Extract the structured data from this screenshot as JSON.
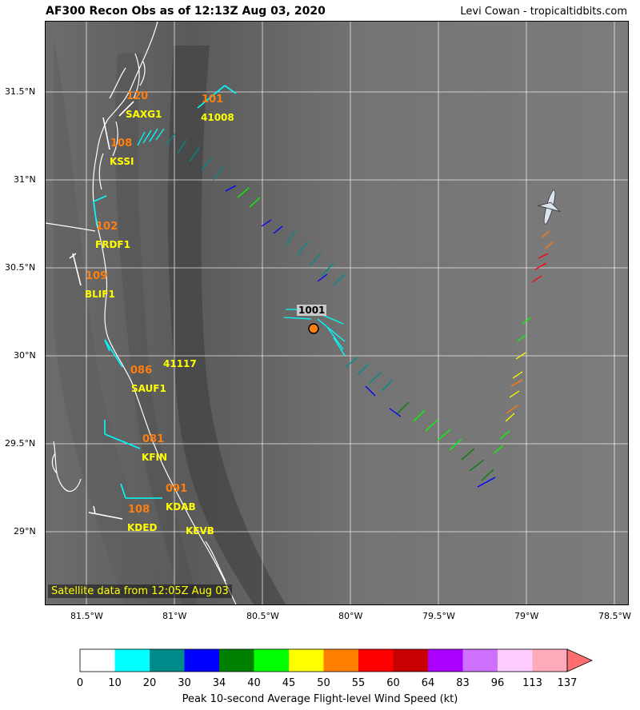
{
  "header": {
    "title": "AF300 Recon Obs as of 12:13Z Aug 03, 2020",
    "credit": "Levi Cowan - tropicaltidbits.com"
  },
  "axes": {
    "lat_labels": [
      "31.5°N",
      "31°N",
      "30.5°N",
      "30°N",
      "29.5°N",
      "29°N"
    ],
    "lon_labels": [
      "81.5°W",
      "81°W",
      "80.5°W",
      "80°W",
      "79.5°W",
      "79°W",
      "78.5°W"
    ]
  },
  "stations": [
    {
      "id": "SAXG1",
      "value": "120"
    },
    {
      "id": "41008",
      "value": "101"
    },
    {
      "id": "KSSI",
      "value": "108"
    },
    {
      "id": "FRDF1",
      "value": "102"
    },
    {
      "id": "BLIF1",
      "value": "109"
    },
    {
      "id": "41117",
      "value": ""
    },
    {
      "id": "SAUF1",
      "value": "086"
    },
    {
      "id": "KFIN",
      "value": "081"
    },
    {
      "id": "KDAB",
      "value": "091"
    },
    {
      "id": "KDED",
      "value": "108"
    },
    {
      "id": "KEVB",
      "value": ""
    }
  ],
  "storm_center": {
    "pressure_label": "1001"
  },
  "satellite_note": "Satellite data from 12:05Z Aug 03",
  "colorbar": {
    "title": "Peak 10-second Average Flight-level Wind Speed (kt)",
    "ticks": [
      "0",
      "10",
      "20",
      "30",
      "34",
      "40",
      "45",
      "50",
      "55",
      "60",
      "64",
      "83",
      "96",
      "113",
      "137"
    ],
    "colors": [
      "#ffffff",
      "#00ffff",
      "#008b8b",
      "#0000ff",
      "#008000",
      "#00ff00",
      "#ffff00",
      "#ff8000",
      "#ff0000",
      "#c80000",
      "#aa00ff",
      "#d070ff",
      "#ffccff",
      "#ffaabb"
    ],
    "extend_color": "#ff6e6e"
  },
  "icons": {
    "aircraft": "aircraft-icon",
    "center": "storm-center-marker"
  }
}
